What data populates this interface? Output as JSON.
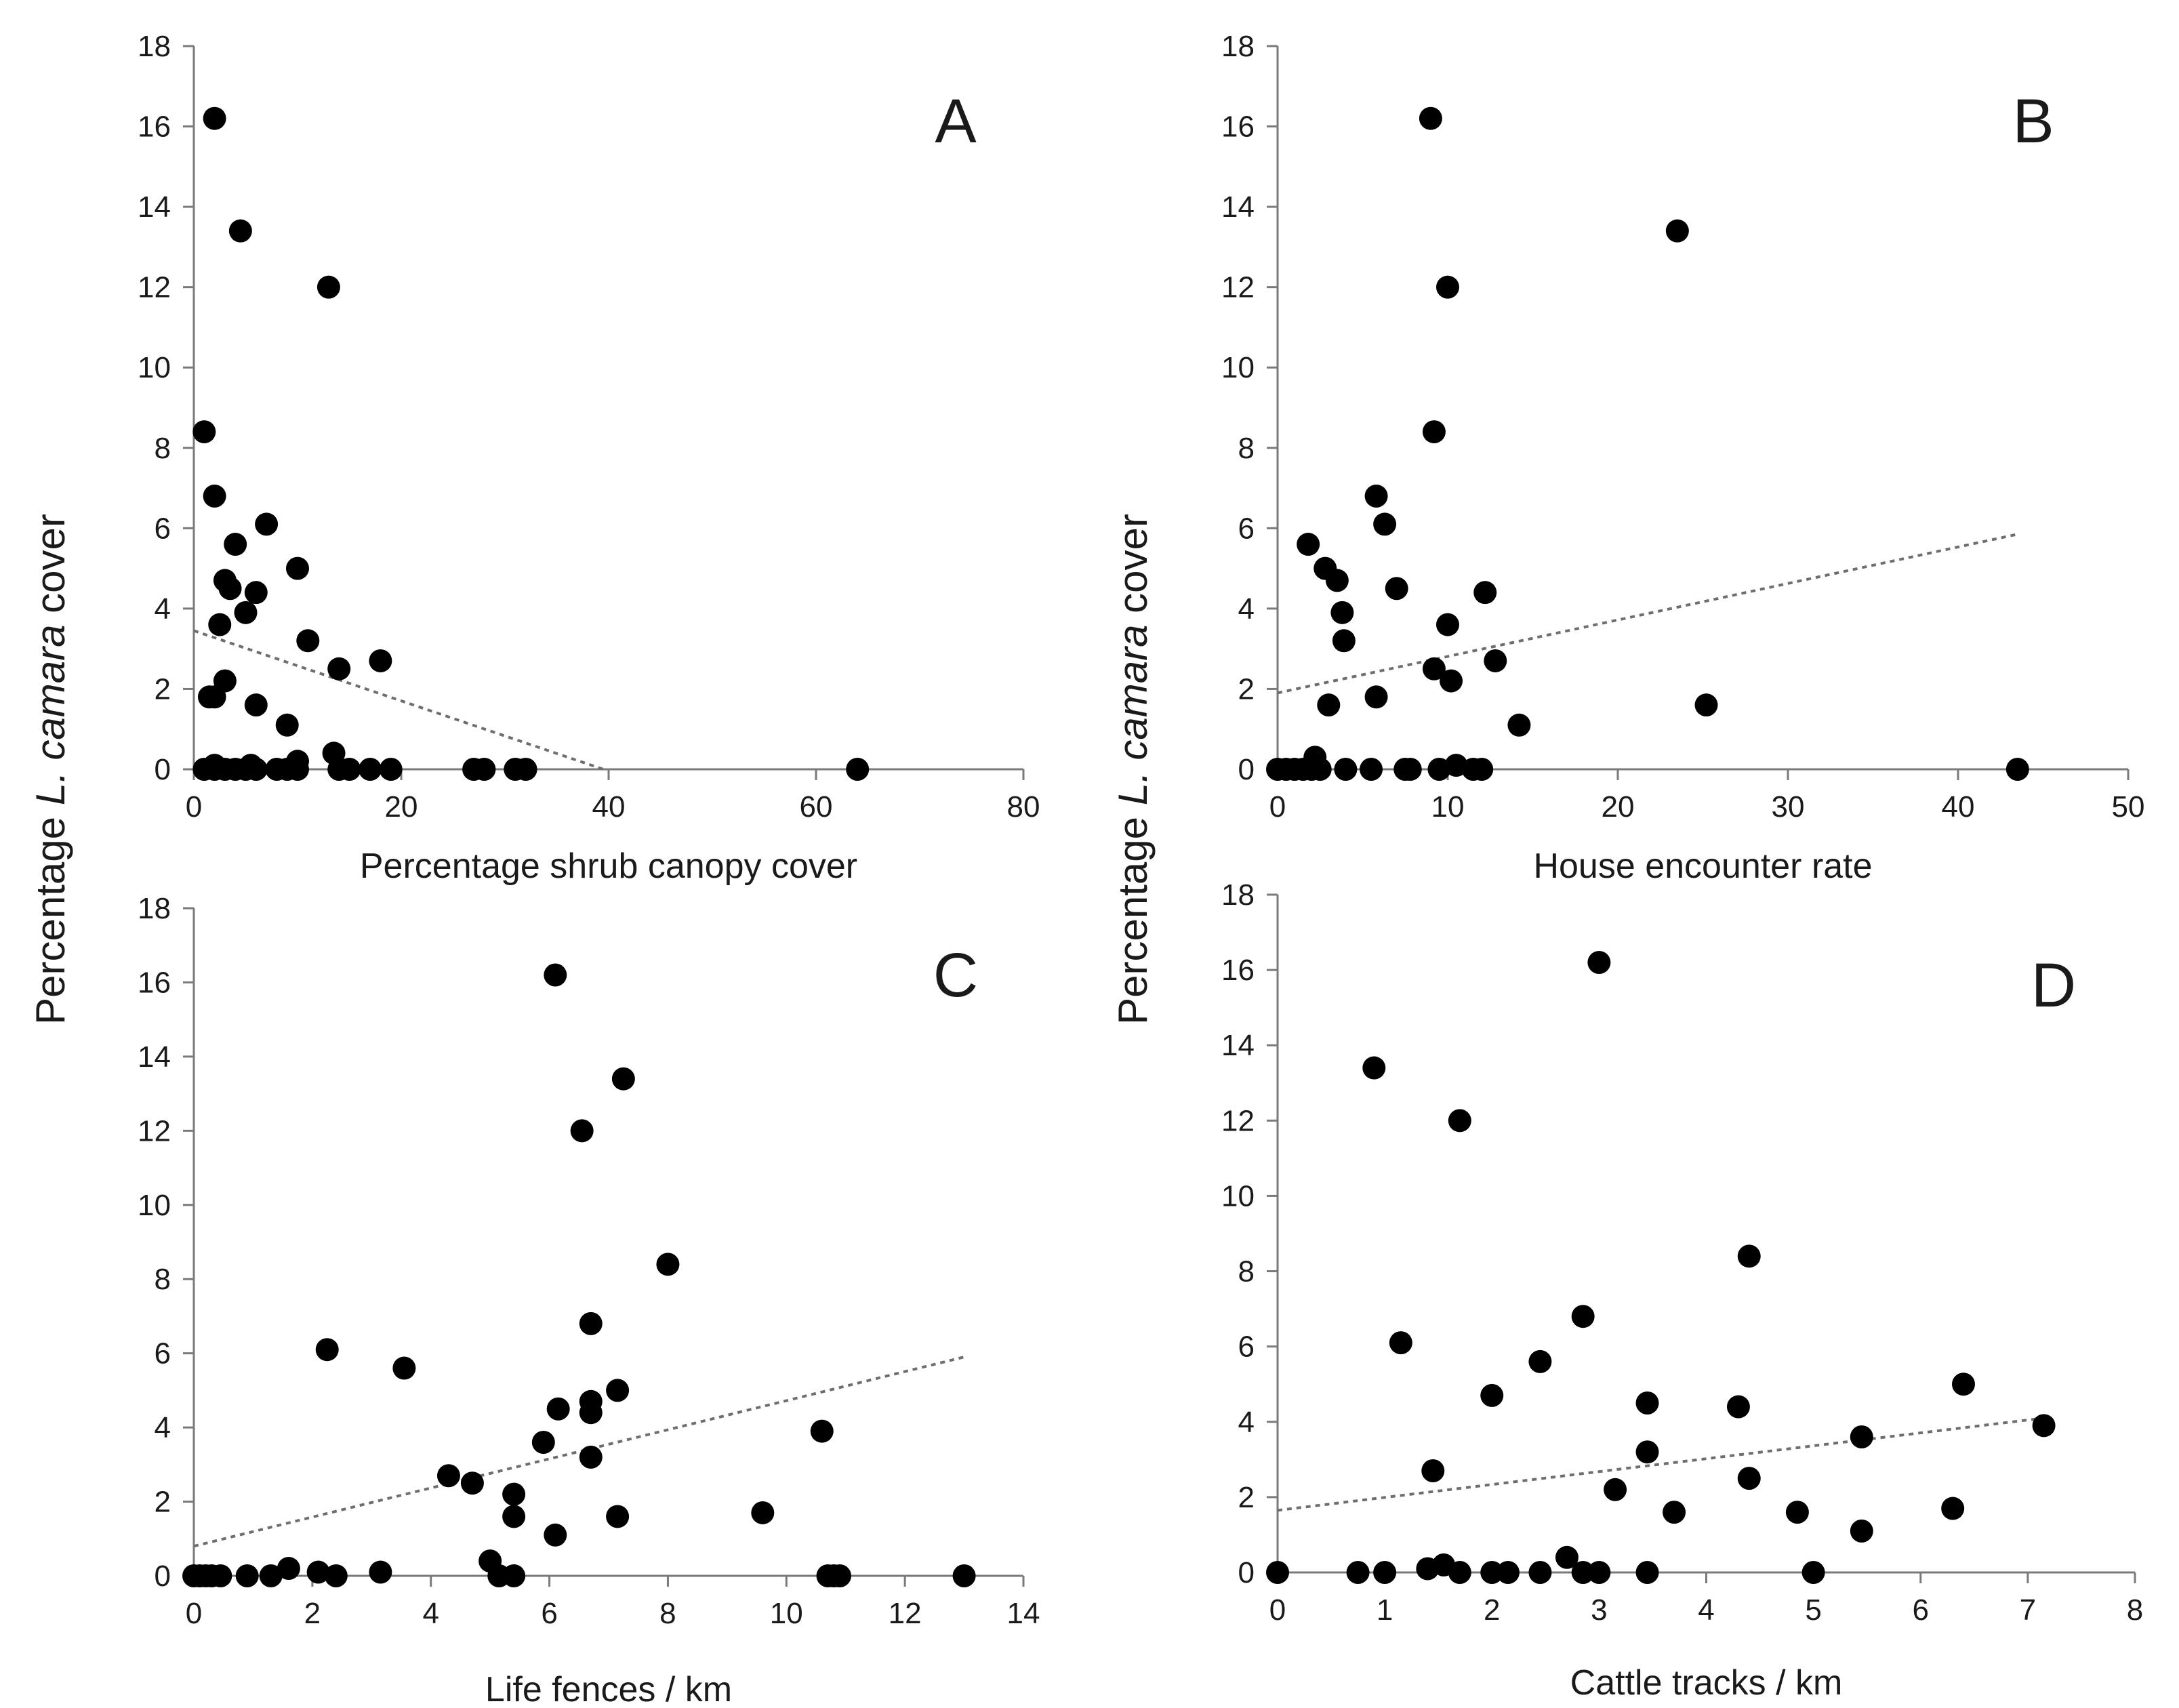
{
  "figure": {
    "y_title_prefix": "Percentage ",
    "y_title_italic": "L. camara",
    "y_title_suffix": " cover"
  },
  "chart_data": [
    {
      "type": "scatter",
      "letter": "A",
      "xlabel": "Percentage shrub canopy cover",
      "ylabel": "Percentage L. camara cover",
      "xlim": [
        0,
        80
      ],
      "ylim": [
        0,
        18
      ],
      "xticks": [
        0,
        20,
        40,
        60,
        80
      ],
      "yticks": [
        0,
        2,
        4,
        6,
        8,
        10,
        12,
        14,
        16,
        18
      ],
      "grid": false,
      "trendline": {
        "x": [
          0,
          39.5
        ],
        "y": [
          3.45,
          0
        ],
        "style": "dotted"
      },
      "points": {
        "x": [
          1,
          2,
          3,
          4,
          5,
          6,
          8,
          9,
          10,
          14,
          15,
          17,
          19,
          27,
          28,
          31,
          32,
          64,
          2,
          1,
          4.5,
          13,
          1.5,
          2,
          7,
          4,
          3,
          3.5,
          5,
          6,
          2.5,
          10,
          11,
          14,
          18,
          3,
          2,
          6,
          9,
          13.5,
          10,
          5.5,
          2
        ],
        "y": [
          0,
          0,
          0,
          0,
          0,
          0,
          0,
          0,
          0,
          0,
          0,
          0,
          0,
          0,
          0,
          0,
          0,
          0,
          16.2,
          8.4,
          13.4,
          12,
          1.8,
          6.8,
          6.1,
          5.6,
          4.7,
          4.5,
          3.9,
          4.4,
          3.6,
          5,
          3.2,
          2.5,
          2.7,
          2.2,
          1.8,
          1.6,
          1.1,
          0.4,
          0.2,
          0.1,
          0.1
        ]
      }
    },
    {
      "type": "scatter",
      "letter": "B",
      "xlabel": "House encounter rate",
      "ylabel": "Percentage L. camara cover",
      "xlim": [
        0,
        50
      ],
      "ylim": [
        0,
        18
      ],
      "xticks": [
        0,
        10,
        20,
        30,
        40,
        50
      ],
      "yticks": [
        0,
        2,
        4,
        6,
        8,
        10,
        12,
        14,
        16,
        18
      ],
      "grid": false,
      "trendline": {
        "x": [
          0,
          43.5
        ],
        "y": [
          1.9,
          5.85
        ],
        "style": "dotted"
      },
      "points": {
        "x": [
          0,
          0.5,
          1,
          1.5,
          2,
          2.5,
          4,
          5.5,
          7.5,
          7.8,
          9.5,
          11.5,
          12,
          43.5,
          9,
          23.5,
          10,
          9.2,
          5.8,
          6.3,
          1.8,
          2.8,
          3.5,
          3.8,
          7,
          12.2,
          10,
          3.9,
          9.2,
          12.8,
          10.2,
          3,
          5.8,
          25.2,
          14.2,
          2.2,
          10.5
        ],
        "y": [
          0,
          0,
          0,
          0,
          0,
          0,
          0,
          0,
          0,
          0,
          0,
          0,
          0,
          0,
          16.2,
          13.4,
          12,
          8.4,
          6.8,
          6.1,
          5.6,
          5,
          4.7,
          3.9,
          4.5,
          4.4,
          3.6,
          3.2,
          2.5,
          2.7,
          2.2,
          1.6,
          1.8,
          1.6,
          1.1,
          0.3,
          0.1
        ]
      }
    },
    {
      "type": "scatter",
      "letter": "C",
      "xlabel": "Life fences / km",
      "ylabel": "Percentage L. camara cover",
      "xlim": [
        0,
        14
      ],
      "ylim": [
        0,
        18
      ],
      "xticks": [
        0,
        2,
        4,
        6,
        8,
        10,
        12,
        14
      ],
      "yticks": [
        0,
        2,
        4,
        6,
        8,
        10,
        12,
        14,
        16,
        18
      ],
      "grid": false,
      "trendline": {
        "x": [
          0,
          13
        ],
        "y": [
          0.8,
          5.9
        ],
        "style": "dotted"
      },
      "points": {
        "x": [
          0,
          0.1,
          0.2,
          0.3,
          0.45,
          0.9,
          1.3,
          1.6,
          2.1,
          2.4,
          3.15,
          5.0,
          5.15,
          5.4,
          10.7,
          10.8,
          10.9,
          13,
          6.1,
          7.25,
          6.55,
          8.0,
          6.7,
          2.25,
          3.55,
          6.15,
          6.7,
          6.7,
          7.15,
          5.9,
          6.7,
          10.6,
          4.3,
          4.7,
          5.4,
          5.4,
          7.15,
          9.6,
          6.1
        ],
        "y": [
          0,
          0,
          0,
          0,
          0,
          0,
          0,
          0.2,
          0.1,
          0,
          0.1,
          0.4,
          0,
          0,
          0,
          0,
          0,
          0,
          16.2,
          13.4,
          12,
          8.4,
          6.8,
          6.1,
          5.6,
          4.5,
          4.7,
          4.4,
          5,
          3.6,
          3.2,
          3.9,
          2.7,
          2.5,
          2.2,
          1.6,
          1.6,
          1.7,
          1.1
        ]
      }
    },
    {
      "type": "scatter",
      "letter": "D",
      "xlabel": "Cattle tracks / km",
      "ylabel": "Percentage L. camara cover",
      "xlim": [
        0,
        8
      ],
      "ylim": [
        0,
        18
      ],
      "xticks": [
        0,
        1,
        2,
        3,
        4,
        5,
        6,
        7,
        8
      ],
      "yticks": [
        0,
        2,
        4,
        6,
        8,
        10,
        12,
        14,
        16,
        18
      ],
      "grid": false,
      "trendline": {
        "x": [
          0,
          7.15
        ],
        "y": [
          1.65,
          4.1
        ],
        "style": "dotted"
      },
      "points": {
        "x": [
          0,
          0.75,
          1.0,
          1.4,
          1.55,
          1.7,
          2.0,
          2.15,
          2.45,
          2.7,
          2.85,
          3.0,
          3.45,
          5.0,
          3.0,
          0.9,
          1.7,
          4.4,
          2.85,
          1.15,
          2.45,
          2.0,
          3.45,
          4.3,
          6.4,
          7.15,
          5.45,
          1.45,
          3.45,
          4.4,
          3.15,
          3.7,
          4.85,
          5.45,
          6.3
        ],
        "y": [
          0,
          0,
          0,
          0.1,
          0.2,
          0,
          0,
          0,
          0,
          0.4,
          0,
          0,
          0,
          0,
          16.2,
          13.4,
          12,
          8.4,
          6.8,
          6.1,
          5.6,
          4.7,
          4.5,
          4.4,
          5,
          3.9,
          3.6,
          2.7,
          3.2,
          2.5,
          2.2,
          1.6,
          1.6,
          1.1,
          1.7
        ]
      }
    }
  ]
}
